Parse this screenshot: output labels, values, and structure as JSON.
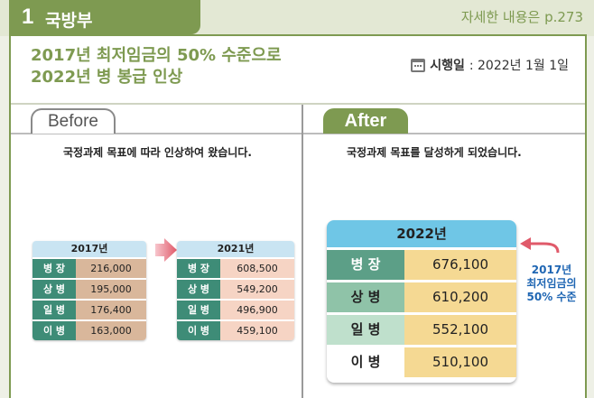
{
  "header": {
    "section_number": "1",
    "ministry": "국방부",
    "reference": "자세한 내용은 p.273"
  },
  "title": {
    "line1": "2017년 최저임금의 50% 수준으로",
    "line2": "2022년 병 봉급 인상"
  },
  "effective": {
    "label": "시행일",
    "value": " : 2022년 1월 1일"
  },
  "before": {
    "tab_label": "Before",
    "note": "국정과제 목표에 따라 인상하여 왔습니다.",
    "table_2017": {
      "year": "2017년",
      "rows": [
        {
          "rank": "병 장",
          "pay": "216,000"
        },
        {
          "rank": "상 병",
          "pay": "195,000"
        },
        {
          "rank": "일 병",
          "pay": "176,400"
        },
        {
          "rank": "이 병",
          "pay": "163,000"
        }
      ]
    },
    "table_2021": {
      "year": "2021년",
      "rows": [
        {
          "rank": "병 장",
          "pay": "608,500"
        },
        {
          "rank": "상 병",
          "pay": "549,200"
        },
        {
          "rank": "일 병",
          "pay": "496,900"
        },
        {
          "rank": "이 병",
          "pay": "459,100"
        }
      ]
    }
  },
  "after": {
    "tab_label": "After",
    "note": "국정과제 목표를 달성하게 되었습니다.",
    "table_2022": {
      "year": "2022년",
      "rows": [
        {
          "rank": "병 장",
          "pay": "676,100"
        },
        {
          "rank": "상 병",
          "pay": "610,200"
        },
        {
          "rank": "일 병",
          "pay": "552,100"
        },
        {
          "rank": "이 병",
          "pay": "510,100"
        }
      ]
    },
    "callout": {
      "line1": "2017년",
      "line2": "최저임금의",
      "line3": "50% 수준"
    }
  },
  "colors": {
    "accent_green": "#7e9a51",
    "header_blue": "#c9e4f2",
    "big_header_blue": "#6fc6e6",
    "rank_teal": "#3e8c77",
    "pay_tan": "#d9b79b",
    "pay_pink": "#f6d4c4",
    "pay_gold": "#f5d993",
    "callout_blue": "#1f66b3",
    "arrow_red": "#e05a6a"
  },
  "icons": [
    "calendar-icon",
    "right-arrow-icon",
    "pointer-arrow-icon"
  ]
}
